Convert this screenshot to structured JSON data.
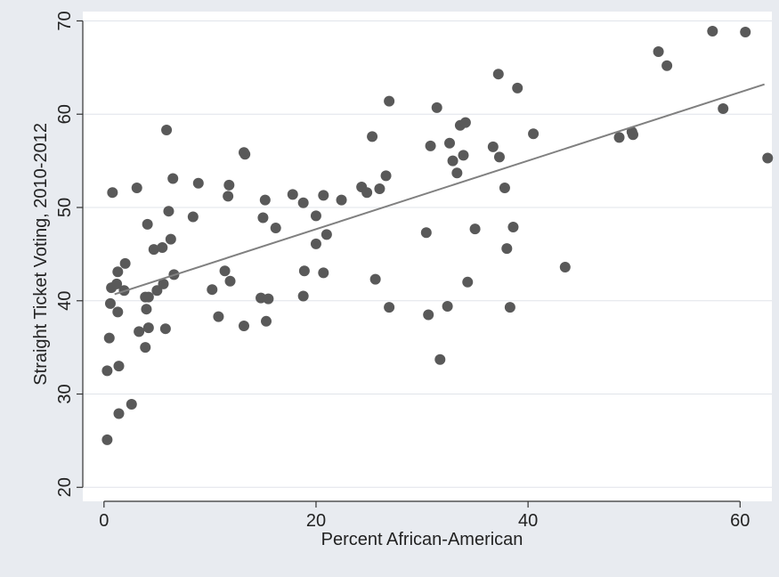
{
  "chart_data": {
    "type": "scatter",
    "title": "",
    "xlabel": "Percent African-American",
    "ylabel": "Straight Ticket Voting, 2010-2012",
    "xlim": [
      -2,
      63
    ],
    "ylim": [
      18.5,
      71
    ],
    "xticks": [
      0,
      20,
      40,
      60
    ],
    "yticks": [
      20,
      30,
      40,
      50,
      60,
      70
    ],
    "grid": true,
    "legend": "none",
    "colors": {
      "background": "#e8ebf0",
      "plot_area": "#ffffff",
      "gridline": "#e0e4ea",
      "point": "#595959",
      "fit_line": "#808080",
      "axis": "#333333"
    },
    "points": [
      [
        0.3,
        25.1
      ],
      [
        0.3,
        32.5
      ],
      [
        0.5,
        36.0
      ],
      [
        0.6,
        39.7
      ],
      [
        0.7,
        41.4
      ],
      [
        0.8,
        51.6
      ],
      [
        1.2,
        41.8
      ],
      [
        1.3,
        43.1
      ],
      [
        1.3,
        38.8
      ],
      [
        1.4,
        33.0
      ],
      [
        1.4,
        27.9
      ],
      [
        1.9,
        41.1
      ],
      [
        2.0,
        44.0
      ],
      [
        2.6,
        28.9
      ],
      [
        3.1,
        52.1
      ],
      [
        3.3,
        36.7
      ],
      [
        3.9,
        40.4
      ],
      [
        3.9,
        35.0
      ],
      [
        4.0,
        39.1
      ],
      [
        4.1,
        48.2
      ],
      [
        4.2,
        40.4
      ],
      [
        4.2,
        37.1
      ],
      [
        4.7,
        45.5
      ],
      [
        5.0,
        41.1
      ],
      [
        5.5,
        45.7
      ],
      [
        5.6,
        41.8
      ],
      [
        5.8,
        37.0
      ],
      [
        5.9,
        58.3
      ],
      [
        6.1,
        49.6
      ],
      [
        6.3,
        46.6
      ],
      [
        6.5,
        53.1
      ],
      [
        6.6,
        42.8
      ],
      [
        8.4,
        49.0
      ],
      [
        8.9,
        52.6
      ],
      [
        10.2,
        41.2
      ],
      [
        10.8,
        38.3
      ],
      [
        11.4,
        43.2
      ],
      [
        11.7,
        51.2
      ],
      [
        11.8,
        52.4
      ],
      [
        11.9,
        42.1
      ],
      [
        13.2,
        55.9
      ],
      [
        13.3,
        55.7
      ],
      [
        13.2,
        37.3
      ],
      [
        14.8,
        40.3
      ],
      [
        15.0,
        48.9
      ],
      [
        15.2,
        50.8
      ],
      [
        15.3,
        37.8
      ],
      [
        15.5,
        40.2
      ],
      [
        16.2,
        47.8
      ],
      [
        17.8,
        51.4
      ],
      [
        18.8,
        50.5
      ],
      [
        18.9,
        43.2
      ],
      [
        18.8,
        40.5
      ],
      [
        20.0,
        49.1
      ],
      [
        20.0,
        46.1
      ],
      [
        20.7,
        51.3
      ],
      [
        20.7,
        43.0
      ],
      [
        21.0,
        47.1
      ],
      [
        22.4,
        50.8
      ],
      [
        24.3,
        52.2
      ],
      [
        24.8,
        51.6
      ],
      [
        25.3,
        57.6
      ],
      [
        25.6,
        42.3
      ],
      [
        26.0,
        52.0
      ],
      [
        26.6,
        53.4
      ],
      [
        26.9,
        61.4
      ],
      [
        26.9,
        39.3
      ],
      [
        30.4,
        47.3
      ],
      [
        30.6,
        38.5
      ],
      [
        30.8,
        56.6
      ],
      [
        31.4,
        60.7
      ],
      [
        31.7,
        33.7
      ],
      [
        32.4,
        39.4
      ],
      [
        32.6,
        56.9
      ],
      [
        32.9,
        55.0
      ],
      [
        33.3,
        53.7
      ],
      [
        33.6,
        58.8
      ],
      [
        33.9,
        55.6
      ],
      [
        34.1,
        59.1
      ],
      [
        34.3,
        42.0
      ],
      [
        35.0,
        47.7
      ],
      [
        36.7,
        56.5
      ],
      [
        37.2,
        64.3
      ],
      [
        37.3,
        55.4
      ],
      [
        37.8,
        52.1
      ],
      [
        38.0,
        45.6
      ],
      [
        38.3,
        39.3
      ],
      [
        38.6,
        47.9
      ],
      [
        39.0,
        62.8
      ],
      [
        40.5,
        57.9
      ],
      [
        43.5,
        43.6
      ],
      [
        48.6,
        57.5
      ],
      [
        49.8,
        58.1
      ],
      [
        49.9,
        57.8
      ],
      [
        52.3,
        66.7
      ],
      [
        53.1,
        65.2
      ],
      [
        57.4,
        68.9
      ],
      [
        58.4,
        60.6
      ],
      [
        60.5,
        68.8
      ],
      [
        62.6,
        55.3
      ]
    ],
    "fit_line": {
      "x": [
        1.0,
        62.3
      ],
      "y": [
        40.7,
        63.2
      ]
    }
  }
}
